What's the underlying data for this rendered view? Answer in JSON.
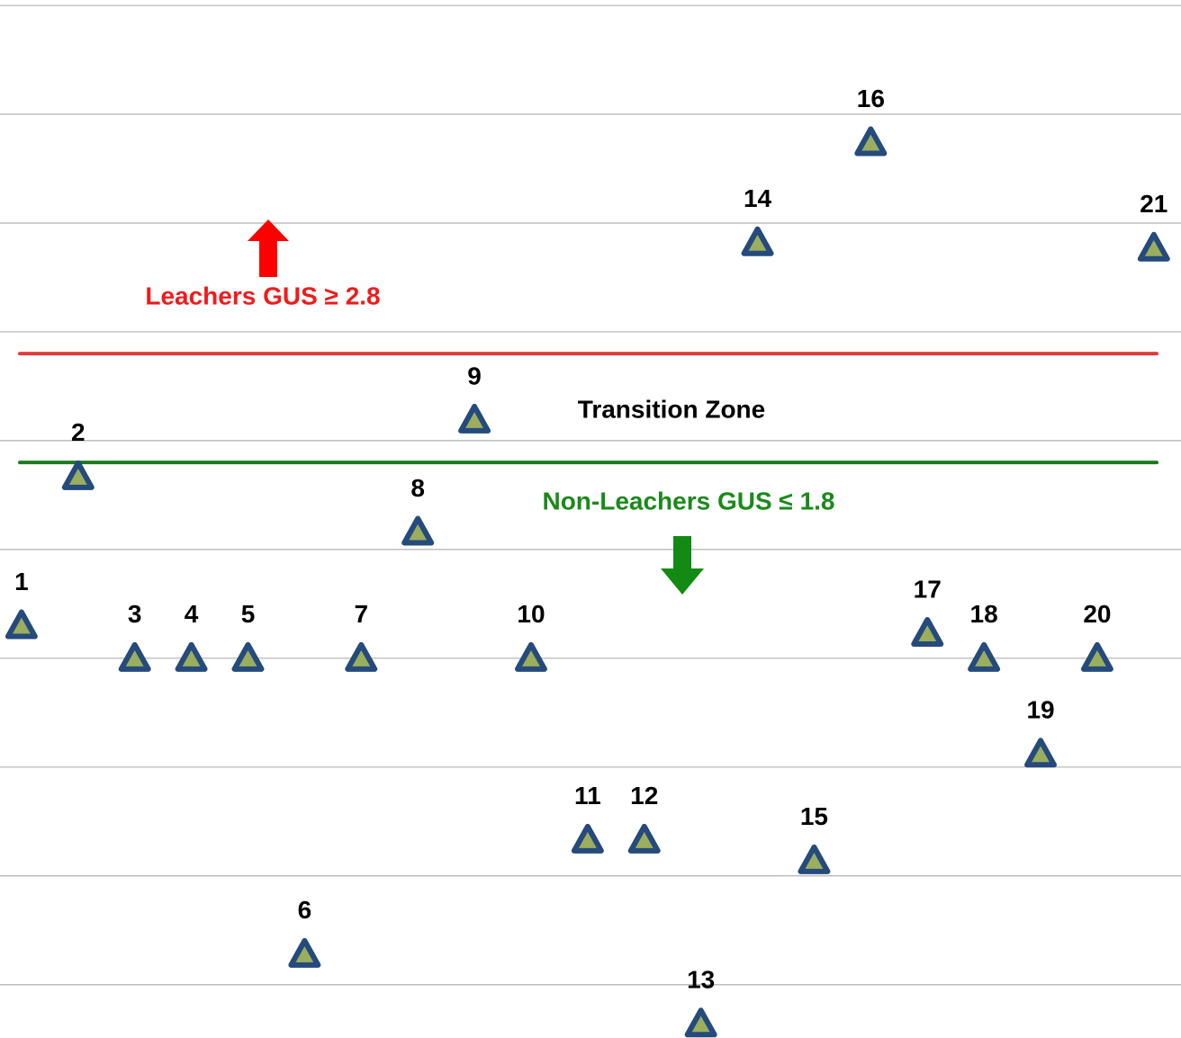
{
  "chart_data": {
    "type": "scatter",
    "labels": [
      "1",
      "2",
      "3",
      "4",
      "5",
      "6",
      "7",
      "8",
      "9",
      "10",
      "11",
      "12",
      "13",
      "14",
      "15",
      "16",
      "17",
      "18",
      "19",
      "20",
      "21"
    ],
    "x": [
      1,
      2,
      3,
      4,
      5,
      6,
      7,
      8,
      9,
      10,
      11,
      12,
      13,
      14,
      15,
      16,
      17,
      18,
      19,
      20,
      21
    ],
    "values": [
      0.3,
      1.67,
      0,
      0,
      0,
      -2.72,
      0,
      1.16,
      2.19,
      0,
      -1.67,
      -1.67,
      -3.36,
      3.82,
      -1.86,
      4.74,
      0.23,
      0,
      -0.88,
      0,
      3.77
    ],
    "xlim": [
      0.62,
      21.48
    ],
    "ylim": [
      -3.49,
      6.05
    ],
    "yticks": [
      -3,
      -2,
      -1,
      0,
      1,
      2,
      3,
      4,
      5,
      6
    ],
    "grid": true,
    "marker_color": "#9aae5e",
    "marker_edge": "#254a7c",
    "thresholds": [
      {
        "value": 2.8,
        "color": "#e23a3a"
      },
      {
        "value": 1.8,
        "color": "#1d7a1d"
      }
    ],
    "annotations": [
      {
        "text": "Leachers GUS ≥ 2.8",
        "color": "#ee1c1c"
      },
      {
        "text": "Transition Zone",
        "color": "#000000"
      },
      {
        "text": "Non-Leachers GUS ≤ 1.8",
        "color": "#1a8a1a"
      }
    ]
  }
}
